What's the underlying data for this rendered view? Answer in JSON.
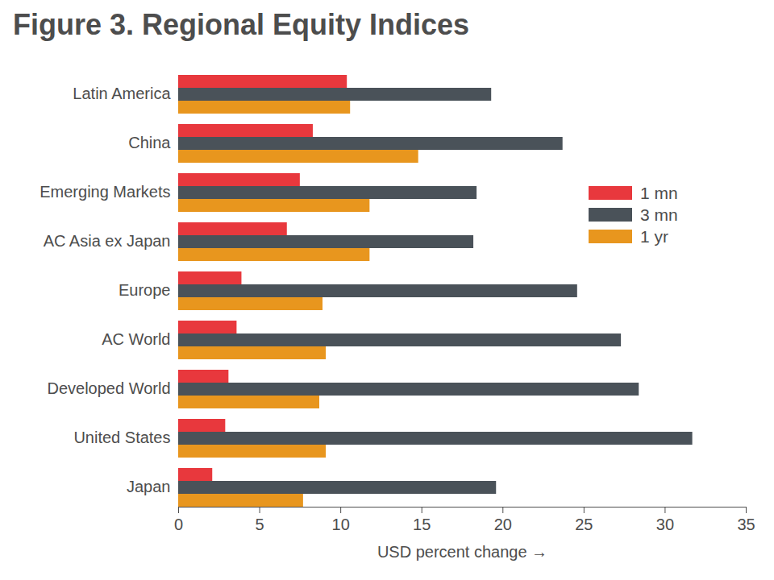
{
  "chart_data": {
    "type": "bar",
    "orientation": "horizontal",
    "title": "Figure 3. Regional Equity Indices",
    "xlabel": "USD percent change",
    "categories": [
      "Latin America",
      "China",
      "Emerging Markets",
      "AC Asia ex Japan",
      "Europe",
      "AC World",
      "Developed World",
      "United States",
      "Japan"
    ],
    "series": [
      {
        "name": "1 mn",
        "color": "#e8383d",
        "values": [
          10.4,
          8.3,
          7.5,
          6.7,
          3.9,
          3.6,
          3.1,
          2.9,
          2.1
        ]
      },
      {
        "name": "3 mn",
        "color": "#4a5259",
        "values": [
          19.3,
          23.7,
          18.4,
          18.2,
          24.6,
          27.3,
          28.4,
          31.7,
          19.6
        ]
      },
      {
        "name": "1 yr",
        "color": "#e8961e",
        "values": [
          10.6,
          14.8,
          11.8,
          11.8,
          8.9,
          9.1,
          8.7,
          9.1,
          7.7
        ]
      }
    ],
    "xlim": [
      0,
      35
    ],
    "xticks": [
      0,
      5,
      10,
      15,
      20,
      25,
      30,
      35
    ],
    "grid": false,
    "legend": "right"
  }
}
